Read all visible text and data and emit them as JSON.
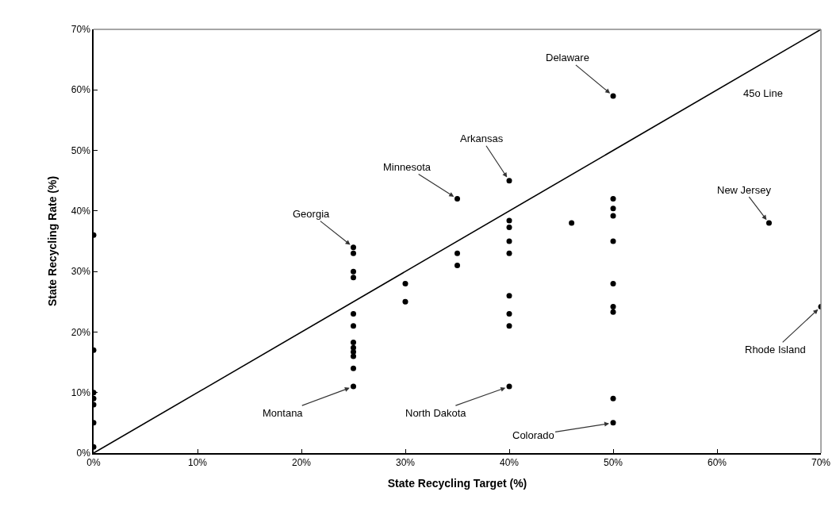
{
  "chart_data": {
    "type": "scatter",
    "xlabel": "State Recycling Target (%)",
    "ylabel": "State Recycling Rate (%)",
    "xlim": [
      0,
      70
    ],
    "ylim": [
      0,
      70
    ],
    "xticks": [
      {
        "value": 0,
        "label": "0%"
      },
      {
        "value": 10,
        "label": "10%"
      },
      {
        "value": 20,
        "label": "20%"
      },
      {
        "value": 30,
        "label": "30%"
      },
      {
        "value": 40,
        "label": "40%"
      },
      {
        "value": 50,
        "label": "50%"
      },
      {
        "value": 60,
        "label": "60%"
      },
      {
        "value": 70,
        "label": "70%"
      }
    ],
    "yticks": [
      {
        "value": 0,
        "label": "0%"
      },
      {
        "value": 10,
        "label": "10%"
      },
      {
        "value": 20,
        "label": "20%"
      },
      {
        "value": 30,
        "label": "30%"
      },
      {
        "value": 40,
        "label": "40%"
      },
      {
        "value": 50,
        "label": "50%"
      },
      {
        "value": 60,
        "label": "60%"
      },
      {
        "value": 70,
        "label": "70%"
      }
    ],
    "marker": "circle",
    "series": [
      {
        "color": "#000000",
        "x": [
          0,
          0,
          0,
          0,
          0,
          0,
          0,
          25,
          25,
          25,
          25,
          25,
          25,
          25,
          25,
          25,
          25,
          25,
          25,
          30,
          30,
          35,
          35,
          35,
          40,
          40,
          40,
          40,
          40,
          40,
          40,
          40,
          40,
          46,
          50,
          50,
          50,
          50,
          50,
          50,
          50,
          50,
          50,
          50,
          65,
          70
        ],
        "values": [
          36,
          17,
          10,
          9,
          8,
          5,
          1,
          34,
          33,
          30,
          29,
          23,
          21,
          18.3,
          17.4,
          16.7,
          16,
          14,
          11,
          28,
          25,
          42,
          33,
          31,
          45,
          38.4,
          37.3,
          35,
          33,
          26,
          23,
          21,
          11,
          38,
          59,
          42,
          40.4,
          39.2,
          35,
          28,
          24.2,
          23.3,
          9,
          5,
          38,
          24.2
        ]
      },
      {
        "type": "line",
        "color": "#000000",
        "marker": "none",
        "x": [
          0,
          70
        ],
        "values": [
          0,
          70
        ]
      }
    ],
    "annotations": [
      {
        "text": "Delaware",
        "x": 50,
        "y": 59
      },
      {
        "text": "Arkansas",
        "x": 40,
        "y": 45
      },
      {
        "text": "Minnesota",
        "x": 35,
        "y": 42
      },
      {
        "text": "Georgia",
        "x": 25,
        "y": 34
      },
      {
        "text": "Montana",
        "x": 25,
        "y": 11
      },
      {
        "text": "North Dakota",
        "x": 40,
        "y": 11
      },
      {
        "text": "Colorado",
        "x": 50,
        "y": 5
      },
      {
        "text": "New Jersey",
        "x": 65,
        "y": 38
      },
      {
        "text": "Rhode Island",
        "x": 70,
        "y": 24.2
      },
      "45o Line"
    ]
  }
}
